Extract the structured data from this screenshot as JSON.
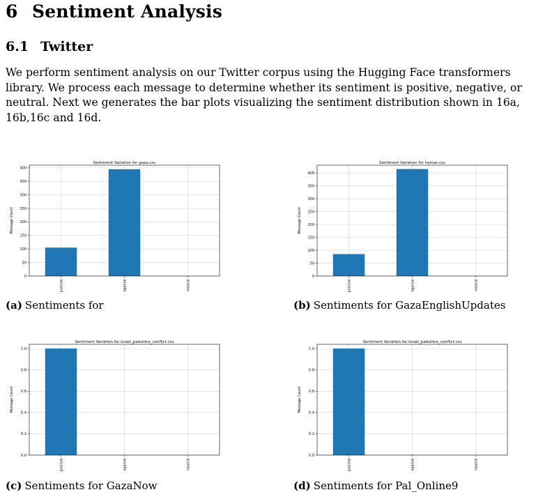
{
  "section": {
    "number": "6",
    "title": "Sentiment Analysis"
  },
  "subsection": {
    "number": "6.1",
    "title": "Twitter"
  },
  "paragraph": "We perform sentiment analysis on our Twitter corpus using the Hugging Face transformers library. We process each message to determine whether its sentiment is positive, negative, or neutral. Next we generates the bar plots visualizing the sentiment distribution shown in 16a, 16b,16c and 16d.",
  "colors": {
    "bar": "#1f77b4",
    "grid": "#d0d0d0"
  },
  "captions": [
    {
      "label": "(a)",
      "text": "Sentiments for"
    },
    {
      "label": "(b)",
      "text": "Sentiments for GazaEnglishUpdates"
    },
    {
      "label": "(c)",
      "text": "Sentiments for GazaNow"
    },
    {
      "label": "(d)",
      "text": "Sentiments for Pal_Online9"
    }
  ],
  "chart_data": [
    {
      "type": "bar",
      "title": "Sentiment Variation for gaza.csv",
      "ylabel": "Message Count",
      "categories": [
        "positive",
        "egative",
        "neutral"
      ],
      "values": [
        105,
        395,
        0
      ],
      "ylim": [
        0,
        410
      ],
      "yticks": [
        0,
        50,
        100,
        150,
        200,
        250,
        300,
        350,
        400
      ],
      "yticklabels": [
        "0",
        "50",
        "100",
        "150",
        "200",
        "250",
        "300",
        "350",
        "400"
      ],
      "grid": true
    },
    {
      "type": "bar",
      "title": "Sentiment Variation for hamas.csv",
      "ylabel": "Message Count",
      "categories": [
        "positive",
        "egative",
        "neutral"
      ],
      "values": [
        85,
        415,
        0
      ],
      "ylim": [
        0,
        430
      ],
      "yticks": [
        0,
        50,
        100,
        150,
        200,
        250,
        300,
        350,
        400
      ],
      "yticklabels": [
        "0",
        "50",
        "100",
        "150",
        "200",
        "250",
        "300",
        "350",
        "400"
      ],
      "grid": true
    },
    {
      "type": "bar",
      "title": "Sentiment Variation for israel_palestine_conflict.csv",
      "ylabel": "Message Count",
      "categories": [
        "positive",
        "egative",
        "neutral"
      ],
      "values": [
        1.0,
        0,
        0
      ],
      "ylim": [
        0,
        1.04
      ],
      "yticks": [
        0,
        0.2,
        0.4,
        0.6,
        0.8,
        1.0
      ],
      "yticklabels": [
        "0.0",
        "0.2",
        "0.4",
        "0.6",
        "0.8",
        "1.0"
      ],
      "grid": true
    },
    {
      "type": "bar",
      "title": "Sentiment Variation for israel_palestine_conflict.csv",
      "ylabel": "Message Count",
      "categories": [
        "positive",
        "egative",
        "neutral"
      ],
      "values": [
        1.0,
        0,
        0
      ],
      "ylim": [
        0,
        1.04
      ],
      "yticks": [
        0,
        0.2,
        0.4,
        0.6,
        0.8,
        1.0
      ],
      "yticklabels": [
        "0.0",
        "0.2",
        "0.4",
        "0.6",
        "0.8",
        "1.0"
      ],
      "grid": true
    }
  ]
}
